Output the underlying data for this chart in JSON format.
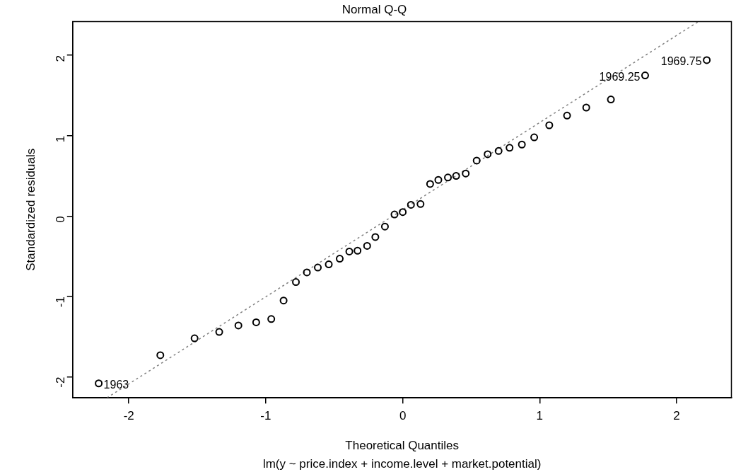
{
  "chart_data": {
    "type": "scatter",
    "title": "Normal Q-Q",
    "xlabel": "Theoretical Quantiles",
    "ylabel": "Standardized residuals",
    "annotations": [
      {
        "text": "1963",
        "x": -2.22,
        "y": -2.08
      },
      {
        "text": "1969.25",
        "x": 1.77,
        "y": 1.75
      },
      {
        "text": "1969.75",
        "x": 2.22,
        "y": 1.94
      },
      "lm(y ~ price.index + income.level + market.potential)"
    ],
    "xlim": [
      -2.41,
      2.4
    ],
    "ylim": [
      -2.26,
      2.42
    ],
    "xticks": [
      -2,
      -1,
      0,
      1,
      2
    ],
    "yticks": [
      -2,
      -1,
      0,
      1,
      2
    ],
    "grid": false,
    "legend": false,
    "marker": "circle",
    "series": [
      {
        "type": "scatter",
        "color": "#000000",
        "x": [
          -2.22,
          -1.77,
          -1.52,
          -1.34,
          -1.2,
          -1.07,
          -0.96,
          -0.87,
          -0.78,
          -0.7,
          -0.62,
          -0.54,
          -0.46,
          -0.39,
          -0.33,
          -0.26,
          -0.2,
          -0.13,
          -0.06,
          0,
          0.06,
          0.13,
          0.2,
          0.26,
          0.33,
          0.39,
          0.46,
          0.54,
          0.62,
          0.7,
          0.78,
          0.87,
          0.96,
          1.07,
          1.2,
          1.34,
          1.52,
          1.77,
          2.22
        ],
        "values": [
          -2.08,
          -1.73,
          -1.52,
          -1.44,
          -1.36,
          -1.32,
          -1.28,
          -1.05,
          -0.82,
          -0.7,
          -0.64,
          -0.6,
          -0.53,
          -0.44,
          -0.43,
          -0.37,
          -0.26,
          -0.13,
          0.02,
          0.05,
          0.14,
          0.15,
          0.4,
          0.45,
          0.48,
          0.5,
          0.53,
          0.69,
          0.77,
          0.81,
          0.85,
          0.89,
          0.98,
          1.13,
          1.25,
          1.35,
          1.45,
          1.75,
          1.94
        ]
      },
      {
        "type": "line",
        "color": "#808080",
        "line_style": "dotted",
        "marker": "none",
        "x": [
          -2.16,
          2.16
        ],
        "values": [
          -2.26,
          2.42
        ]
      }
    ]
  }
}
